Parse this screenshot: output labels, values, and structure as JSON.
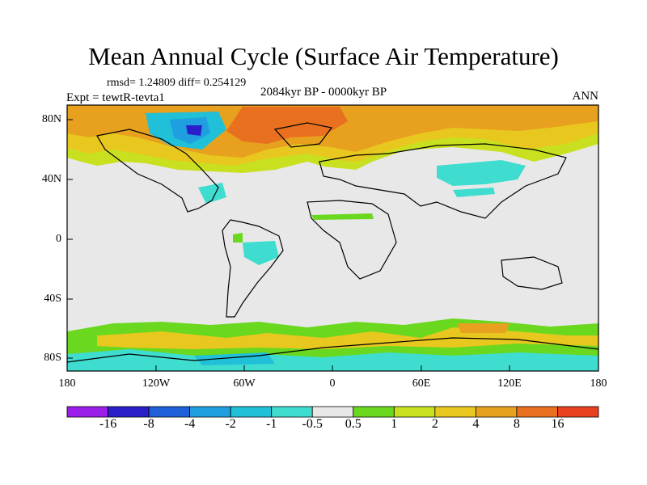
{
  "title": "Mean Annual Cycle (Surface Air Temperature)",
  "stats": "rmsd= 1.24809 diff= 0.254129",
  "experiment": "Expt = tewtR-tevta1",
  "period": "2084kyr BP - 0000kyr BP",
  "season": "ANN",
  "lat_labels": [
    "80N",
    "40N",
    "0",
    "40S",
    "80S"
  ],
  "lon_labels": [
    "180",
    "120W",
    "60W",
    "0",
    "60E",
    "120E",
    "180"
  ],
  "colorbar": {
    "labels": [
      "-16",
      "-8",
      "-4",
      "-2",
      "-1",
      "-0.5",
      "0.5",
      "1",
      "2",
      "4",
      "8",
      "16"
    ],
    "colors": [
      "#9b1fe8",
      "#2a1fc8",
      "#1f5fd8",
      "#1f9fe0",
      "#1fc0d8",
      "#3fdcd0",
      "#e8e8e8",
      "#6ad81f",
      "#c8e01f",
      "#e8c81f",
      "#e8a01f",
      "#e8701f",
      "#e8401f"
    ]
  },
  "palette": {
    "neutral": "#e8e8e8",
    "cyan": "#3fdcd0",
    "teal": "#1fc0d8",
    "blue": "#1f9fe0",
    "navy": "#2a1fc8",
    "green": "#6ad81f",
    "yellowgreen": "#c8e01f",
    "yellow": "#e8c81f",
    "orange": "#e8a01f",
    "darkorange": "#e8701f"
  }
}
